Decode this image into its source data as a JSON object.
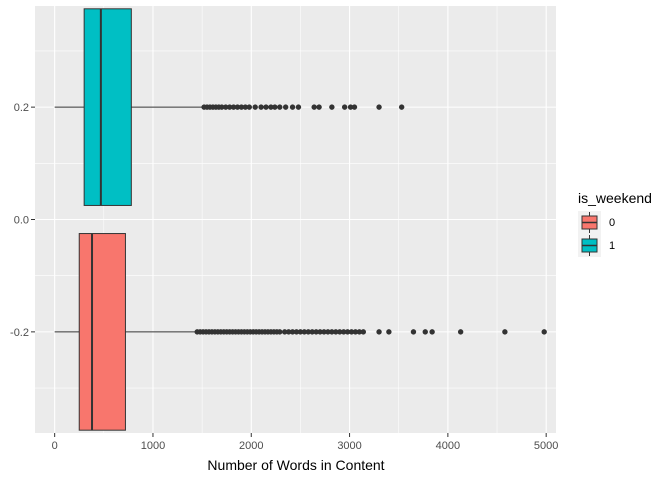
{
  "chart_data": {
    "type": "boxplot",
    "orientation": "horizontal",
    "xlabel": "Number of Words in Content",
    "ylabel": "",
    "xlim": [
      -200,
      5100
    ],
    "ylim": [
      -0.38,
      0.38
    ],
    "x_ticks": [
      0,
      1000,
      2000,
      3000,
      4000,
      5000
    ],
    "y_ticks": [
      0.2,
      0.0,
      -0.2
    ],
    "y_tick_labels": [
      "0.2",
      "0.0",
      "-0.2"
    ],
    "grid": true,
    "legend": {
      "title": "is_weekend",
      "placement": "right",
      "entries": [
        {
          "label": "0",
          "color": "#F8766D"
        },
        {
          "label": "1",
          "color": "#00BFC4"
        }
      ]
    },
    "series": [
      {
        "group": "0",
        "color": "#F8766D",
        "y_center": -0.2,
        "y_min": -0.375,
        "y_max": -0.025,
        "whisker_low": 0,
        "q1": 250,
        "median": 380,
        "q3": 720,
        "whisker_high": 1440,
        "outliers": [
          1450,
          1480,
          1510,
          1540,
          1570,
          1600,
          1630,
          1660,
          1690,
          1720,
          1750,
          1780,
          1810,
          1840,
          1870,
          1900,
          1930,
          1960,
          1990,
          2020,
          2050,
          2080,
          2110,
          2140,
          2170,
          2200,
          2230,
          2260,
          2290,
          2340,
          2380,
          2420,
          2460,
          2500,
          2540,
          2580,
          2620,
          2660,
          2700,
          2740,
          2780,
          2820,
          2860,
          2900,
          2940,
          2980,
          3020,
          3060,
          3100,
          3140,
          3300,
          3400,
          3650,
          3770,
          3840,
          4130,
          4580,
          4980
        ]
      },
      {
        "group": "1",
        "color": "#00BFC4",
        "y_center": 0.2,
        "y_min": 0.025,
        "y_max": 0.375,
        "whisker_low": 0,
        "q1": 300,
        "median": 470,
        "q3": 780,
        "whisker_high": 1500,
        "outliers": [
          1520,
          1550,
          1580,
          1610,
          1640,
          1670,
          1700,
          1740,
          1780,
          1820,
          1860,
          1900,
          1940,
          1980,
          2040,
          2100,
          2150,
          2200,
          2240,
          2290,
          2350,
          2420,
          2480,
          2640,
          2690,
          2820,
          2950,
          3010,
          3050,
          3300,
          3530
        ]
      }
    ]
  }
}
